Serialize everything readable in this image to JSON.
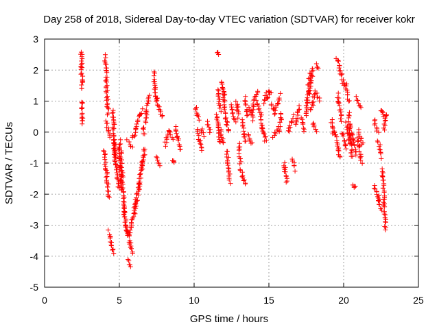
{
  "chart_data": {
    "type": "scatter",
    "title": "Day 258 of 2018, Sidereal Day-to-day VTEC variation (SDTVAR) for receiver kokr",
    "xlabel": "GPS time / hours",
    "ylabel": "SDTVAR / TECUs",
    "xlim": [
      0,
      25
    ],
    "ylim": [
      -5,
      3
    ],
    "xticks": [
      0,
      5,
      10,
      15,
      20,
      25
    ],
    "yticks": [
      -5,
      -4,
      -3,
      -2,
      -1,
      0,
      1,
      2,
      3
    ],
    "xtick_labels": [
      "0",
      "5",
      "10",
      "15",
      "20",
      "25"
    ],
    "ytick_labels": [
      "-5",
      "-4",
      "-3",
      "-2",
      "-1",
      "0",
      "1",
      "2",
      "3"
    ],
    "grid": true,
    "marker": "plus",
    "colors": {
      "points": "#ff0000",
      "grid": "#a0a0a0",
      "frame": "#000000"
    },
    "series": [
      {
        "name": "SDTVAR",
        "segments": [
          [
            2.45,
            2.6,
            2.52,
            1.4
          ],
          [
            2.5,
            1.0,
            2.55,
            0.25
          ],
          [
            4.05,
            2.45,
            4.25,
            0.6
          ],
          [
            4.1,
            0.35,
            4.35,
            -0.2
          ],
          [
            4.0,
            -0.6,
            4.3,
            -2.1
          ],
          [
            4.3,
            -3.2,
            4.6,
            -3.9
          ],
          [
            4.55,
            0.7,
            4.75,
            -1.0
          ],
          [
            4.6,
            -0.3,
            4.95,
            -1.8
          ],
          [
            4.95,
            -0.5,
            5.15,
            -1.9
          ],
          [
            5.05,
            -0.3,
            5.35,
            -2.7
          ],
          [
            5.3,
            -2.5,
            5.55,
            -3.3
          ],
          [
            5.45,
            -3.0,
            5.85,
            -3.9
          ],
          [
            5.6,
            -4.15,
            5.75,
            -4.35
          ],
          [
            5.7,
            -3.3,
            6.1,
            -2.2
          ],
          [
            6.0,
            -2.6,
            6.35,
            -1.6
          ],
          [
            6.3,
            -1.8,
            6.55,
            -0.9
          ],
          [
            6.5,
            -1.2,
            6.7,
            -0.5
          ],
          [
            5.5,
            -0.3,
            5.9,
            -0.45
          ],
          [
            5.85,
            -0.2,
            6.05,
            0.0
          ],
          [
            6.05,
            0.05,
            6.3,
            0.5
          ],
          [
            6.3,
            0.5,
            6.5,
            0.7
          ],
          [
            6.55,
            0.15,
            6.7,
            -0.05
          ],
          [
            6.75,
            0.3,
            6.95,
            1.2
          ],
          [
            7.3,
            1.9,
            7.45,
            1.0
          ],
          [
            7.5,
            1.1,
            7.85,
            0.5
          ],
          [
            7.45,
            -0.8,
            7.65,
            -1.05
          ],
          [
            8.05,
            -0.4,
            8.3,
            0.0
          ],
          [
            8.3,
            0.05,
            8.55,
            -0.2
          ],
          [
            8.55,
            -0.9,
            8.7,
            -1.0
          ],
          [
            8.75,
            0.2,
            9.1,
            -0.6
          ],
          [
            10.1,
            0.8,
            10.3,
            0.4
          ],
          [
            10.2,
            0.1,
            10.5,
            -0.6
          ],
          [
            10.45,
            0.1,
            10.6,
            -0.1
          ],
          [
            10.85,
            0.35,
            11.1,
            0.0
          ],
          [
            11.5,
            2.55,
            11.6,
            2.5
          ],
          [
            11.5,
            0.6,
            11.7,
            -0.3
          ],
          [
            11.6,
            1.4,
            11.75,
            0.7
          ],
          [
            11.8,
            0.05,
            11.95,
            -0.4
          ],
          [
            11.8,
            1.65,
            12.05,
            1.2
          ],
          [
            11.95,
            1.3,
            12.1,
            0.6
          ],
          [
            12.1,
            0.5,
            12.3,
            0.0
          ],
          [
            12.2,
            -0.6,
            12.4,
            -1.6
          ],
          [
            12.45,
            0.85,
            12.75,
            0.35
          ],
          [
            12.85,
            1.0,
            12.95,
            0.5
          ],
          [
            13.0,
            -0.4,
            13.1,
            -1.0
          ],
          [
            13.1,
            -1.2,
            13.4,
            -1.7
          ],
          [
            13.2,
            0.4,
            13.45,
            -0.3
          ],
          [
            13.4,
            1.1,
            13.55,
            0.5
          ],
          [
            13.6,
            -0.1,
            13.85,
            -0.4
          ],
          [
            13.7,
            0.8,
            13.95,
            0.4
          ],
          [
            13.85,
            0.65,
            14.25,
            1.35
          ],
          [
            14.2,
            1.0,
            14.45,
            0.55
          ],
          [
            14.45,
            0.5,
            14.6,
            0.0
          ],
          [
            14.55,
            0.1,
            14.8,
            -0.3
          ],
          [
            14.65,
            0.95,
            14.95,
            1.35
          ],
          [
            14.9,
            1.1,
            15.15,
            1.3
          ],
          [
            15.15,
            0.9,
            15.4,
            0.6
          ],
          [
            15.3,
            -0.15,
            15.55,
            0.1
          ],
          [
            15.45,
            0.7,
            15.75,
            1.2
          ],
          [
            15.65,
            0.0,
            15.85,
            0.6
          ],
          [
            16.0,
            -1.0,
            16.2,
            -1.6
          ],
          [
            16.3,
            0.0,
            16.6,
            0.5
          ],
          [
            16.6,
            -0.9,
            16.75,
            -1.2
          ],
          [
            16.8,
            0.2,
            17.0,
            0.8
          ],
          [
            17.15,
            0.45,
            17.35,
            0.05
          ],
          [
            17.45,
            0.5,
            17.75,
            1.9
          ],
          [
            17.7,
            1.2,
            17.95,
            2.1
          ],
          [
            17.8,
            0.7,
            18.1,
            1.3
          ],
          [
            17.95,
            0.3,
            18.2,
            0.0
          ],
          [
            18.2,
            2.2,
            18.35,
            2.05
          ],
          [
            18.2,
            1.2,
            18.4,
            1.0
          ],
          [
            19.2,
            0.4,
            19.3,
            0.0
          ],
          [
            19.4,
            0.05,
            19.75,
            -0.8
          ],
          [
            19.55,
            2.4,
            19.8,
            1.9
          ],
          [
            19.6,
            1.2,
            19.85,
            0.4
          ],
          [
            19.85,
            1.85,
            20.05,
            1.45
          ],
          [
            19.9,
            0.0,
            20.2,
            -0.5
          ],
          [
            20.15,
            1.5,
            20.35,
            1.0
          ],
          [
            20.2,
            0.3,
            20.4,
            -0.4
          ],
          [
            20.35,
            0.6,
            20.55,
            -0.8
          ],
          [
            20.55,
            0.0,
            20.85,
            -0.7
          ],
          [
            20.6,
            -1.7,
            20.8,
            -1.8
          ],
          [
            20.85,
            1.1,
            21.1,
            0.8
          ],
          [
            20.95,
            -0.2,
            21.2,
            -1.0
          ],
          [
            21.0,
            0.05,
            21.25,
            -0.4
          ],
          [
            22.05,
            0.4,
            22.3,
            0.0
          ],
          [
            22.05,
            -1.7,
            22.4,
            -2.2
          ],
          [
            22.3,
            -0.3,
            22.55,
            -0.8
          ],
          [
            22.3,
            -2.2,
            22.55,
            -2.55
          ],
          [
            22.5,
            0.75,
            22.65,
            0.5
          ],
          [
            22.6,
            -1.2,
            22.8,
            -3.1
          ],
          [
            22.7,
            0.1,
            22.85,
            0.6
          ]
        ]
      }
    ]
  }
}
